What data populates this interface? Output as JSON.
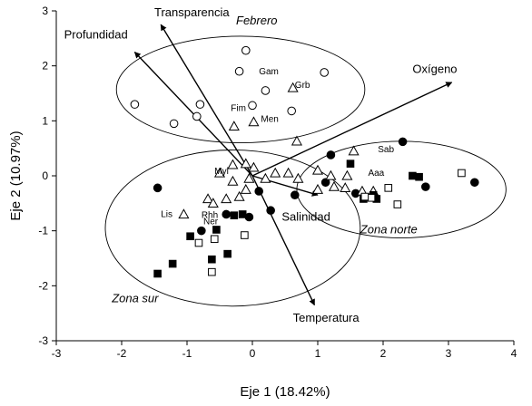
{
  "chart_data": {
    "type": "scatter",
    "xlabel": "Eje 1 (18.42%)",
    "ylabel": "Eje 2 (10.97%)",
    "xlim": [
      -3,
      4
    ],
    "ylim": [
      -3,
      3
    ],
    "x_ticks": [
      "-3",
      "-2",
      "-1",
      "0",
      "1",
      "2",
      "3",
      "4"
    ],
    "y_ticks": [
      "-3",
      "-2",
      "-1",
      "0",
      "1",
      "2",
      "3"
    ],
    "grid": false,
    "vectors": [
      {
        "label": "Transparencia",
        "x": -1.4,
        "y": 2.75,
        "label_x": -1.5,
        "label_y": 2.9
      },
      {
        "label": "Profundidad",
        "x": -1.8,
        "y": 2.25,
        "label_x": -2.88,
        "label_y": 2.5
      },
      {
        "label": "Oxígeno",
        "x": 3.05,
        "y": 1.7,
        "label_x": 2.45,
        "label_y": 1.87
      },
      {
        "label": "Temperatura",
        "x": 0.95,
        "y": -2.35,
        "label_x": 0.62,
        "label_y": -2.65
      },
      {
        "label": "Salinidad",
        "x": 1.0,
        "y": -0.35,
        "label_x": 0.45,
        "label_y": -0.82
      }
    ],
    "ellipses": [
      {
        "label": "Febrero",
        "cx": -0.18,
        "cy": 1.57,
        "rx": 1.9,
        "ry": 0.97,
        "label_x": -0.25,
        "label_y": 2.75
      },
      {
        "label": "Zona sur",
        "cx": -0.3,
        "cy": -0.95,
        "rx": 1.95,
        "ry": 1.42,
        "label_x": -2.15,
        "label_y": -2.3
      },
      {
        "label": "Zona norte",
        "cx": 2.28,
        "cy": -0.25,
        "rx": 1.6,
        "ry": 0.88,
        "label_x": 1.65,
        "label_y": -1.05
      }
    ],
    "species_labels": [
      {
        "label": "Gam",
        "x": 0.1,
        "y": 1.85
      },
      {
        "label": "Grb",
        "x": 0.65,
        "y": 1.6
      },
      {
        "label": "Fim",
        "x": -0.33,
        "y": 1.18
      },
      {
        "label": "Men",
        "x": 0.13,
        "y": 0.98
      },
      {
        "label": "Myl",
        "x": -0.58,
        "y": 0.03
      },
      {
        "label": "Ner",
        "x": -0.75,
        "y": -0.88
      },
      {
        "label": "Lis",
        "x": -1.4,
        "y": -0.75
      },
      {
        "label": "Rhh",
        "x": -0.78,
        "y": -0.77
      },
      {
        "label": "Sab",
        "x": 1.92,
        "y": 0.43
      },
      {
        "label": "Aaa",
        "x": 1.77,
        "y": 0.0
      }
    ],
    "series": [
      {
        "marker": "circle-open",
        "points": [
          [
            -0.1,
            2.28
          ],
          [
            -0.2,
            1.9
          ],
          [
            0.2,
            1.55
          ],
          [
            1.1,
            1.88
          ],
          [
            -1.8,
            1.3
          ],
          [
            -0.8,
            1.3
          ],
          [
            -0.85,
            1.08
          ],
          [
            -1.2,
            0.95
          ],
          [
            0.0,
            1.28
          ],
          [
            0.6,
            1.18
          ]
        ]
      },
      {
        "marker": "circle-filled",
        "points": [
          [
            -1.45,
            -0.22
          ],
          [
            -0.78,
            -1.0
          ],
          [
            -0.4,
            -0.7
          ],
          [
            -0.05,
            -0.75
          ],
          [
            0.28,
            -0.63
          ],
          [
            0.1,
            -0.28
          ],
          [
            0.65,
            -0.35
          ],
          [
            2.3,
            0.62
          ],
          [
            1.2,
            0.38
          ],
          [
            2.65,
            -0.2
          ],
          [
            3.4,
            -0.12
          ],
          [
            1.58,
            -0.32
          ],
          [
            1.12,
            -0.12
          ]
        ]
      },
      {
        "marker": "triangle-open",
        "points": [
          [
            0.02,
            0.15
          ],
          [
            0.68,
            0.63
          ],
          [
            0.35,
            0.05
          ],
          [
            0.55,
            0.05
          ],
          [
            0.2,
            -0.05
          ],
          [
            0.7,
            -0.05
          ],
          [
            1.0,
            -0.25
          ],
          [
            1.25,
            -0.2
          ],
          [
            1.0,
            0.1
          ],
          [
            1.2,
            0.0
          ],
          [
            1.42,
            -0.22
          ],
          [
            1.55,
            0.45
          ],
          [
            1.45,
            0.0
          ],
          [
            1.68,
            -0.28
          ],
          [
            1.85,
            -0.28
          ],
          [
            -1.05,
            -0.7
          ],
          [
            -0.68,
            -0.42
          ],
          [
            -0.6,
            -0.5
          ],
          [
            -0.4,
            -0.42
          ],
          [
            -0.2,
            -0.38
          ],
          [
            -0.3,
            -0.1
          ],
          [
            -0.05,
            -0.05
          ],
          [
            -0.3,
            0.2
          ],
          [
            -0.1,
            0.22
          ],
          [
            -0.5,
            0.05
          ],
          [
            0.62,
            1.6
          ],
          [
            -0.28,
            0.9
          ],
          [
            0.02,
            0.98
          ],
          [
            -0.1,
            -0.25
          ]
        ]
      },
      {
        "marker": "square-filled",
        "points": [
          [
            -1.45,
            -1.78
          ],
          [
            -1.22,
            -1.6
          ],
          [
            -0.95,
            -1.1
          ],
          [
            -0.62,
            -1.52
          ],
          [
            -0.38,
            -1.42
          ],
          [
            -0.55,
            -0.98
          ],
          [
            -0.15,
            -0.7
          ],
          [
            -0.28,
            -0.72
          ],
          [
            1.9,
            -0.42
          ],
          [
            2.45,
            0.0
          ],
          [
            2.55,
            -0.02
          ],
          [
            1.7,
            -0.42
          ],
          [
            1.85,
            -0.35
          ],
          [
            1.5,
            0.22
          ]
        ]
      },
      {
        "marker": "square-open",
        "points": [
          [
            -0.62,
            -1.75
          ],
          [
            -0.82,
            -1.22
          ],
          [
            -0.58,
            -1.15
          ],
          [
            -0.12,
            -1.08
          ],
          [
            1.82,
            -0.4
          ],
          [
            2.22,
            -0.52
          ],
          [
            3.2,
            0.05
          ],
          [
            1.72,
            -0.38
          ],
          [
            2.08,
            -0.22
          ]
        ]
      }
    ]
  }
}
